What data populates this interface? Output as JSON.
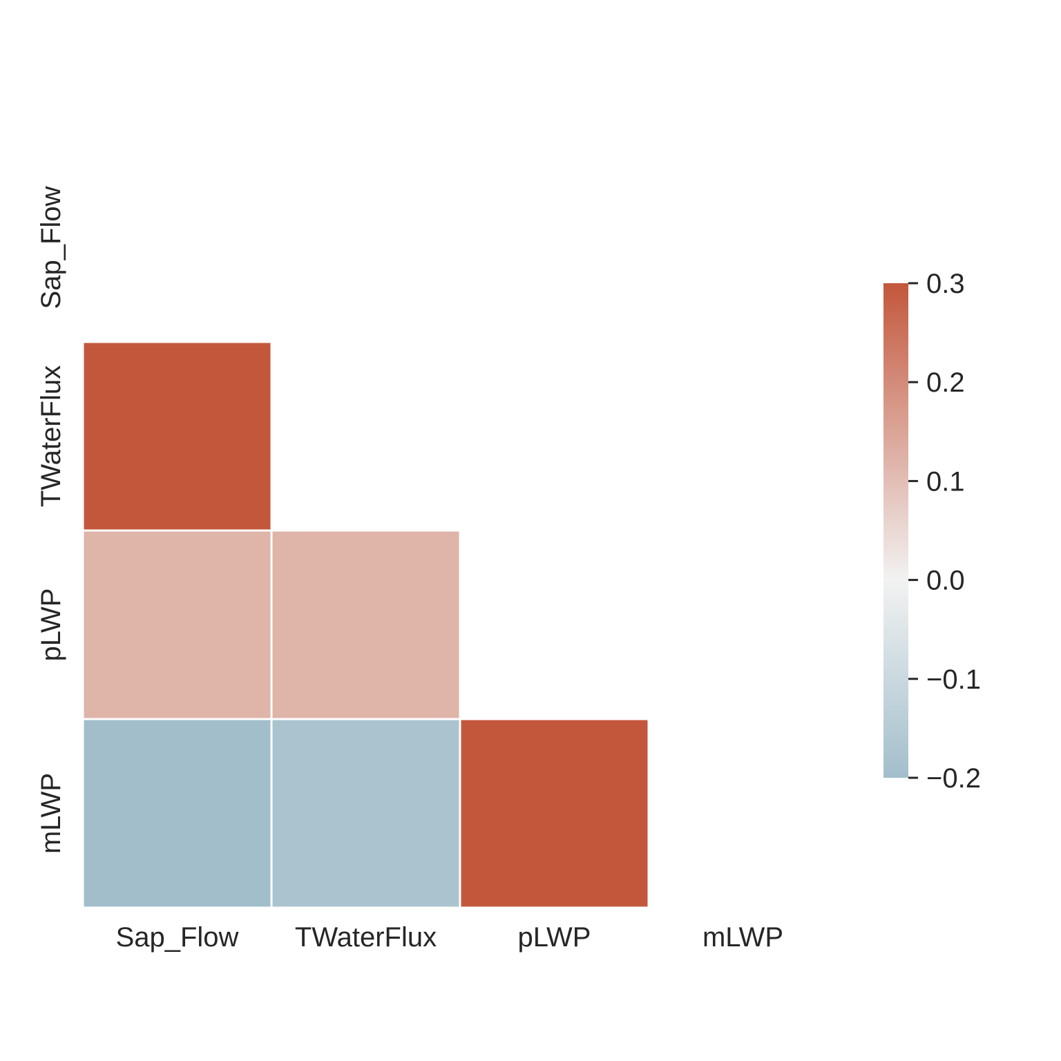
{
  "chart_data": {
    "type": "heatmap",
    "mask": "upper-triangle-including-diagonal",
    "x_labels": [
      "Sap_Flow",
      "TWaterFlux",
      "pLWP",
      "mLWP"
    ],
    "y_labels": [
      "Sap_Flow",
      "TWaterFlux",
      "pLWP",
      "mLWP"
    ],
    "values": [
      [
        null,
        null,
        null,
        null
      ],
      [
        0.3,
        null,
        null,
        null
      ],
      [
        0.12,
        0.12,
        null,
        null
      ],
      [
        -0.2,
        -0.18,
        0.3,
        null
      ]
    ],
    "colorbar": {
      "range": [
        -0.2,
        0.3
      ],
      "ticks": [
        0.3,
        0.2,
        0.1,
        0.0,
        -0.1,
        -0.2
      ],
      "tick_labels": [
        "0.3",
        "0.2",
        "0.1",
        "0.0",
        "−0.1",
        "−0.2"
      ],
      "colors": {
        "low": "#7aa4b8",
        "mid": "#f2f2f2",
        "high": "#c3573c"
      }
    },
    "cell_border_color": "#ffffff",
    "title": "",
    "xlabel": "",
    "ylabel": ""
  }
}
